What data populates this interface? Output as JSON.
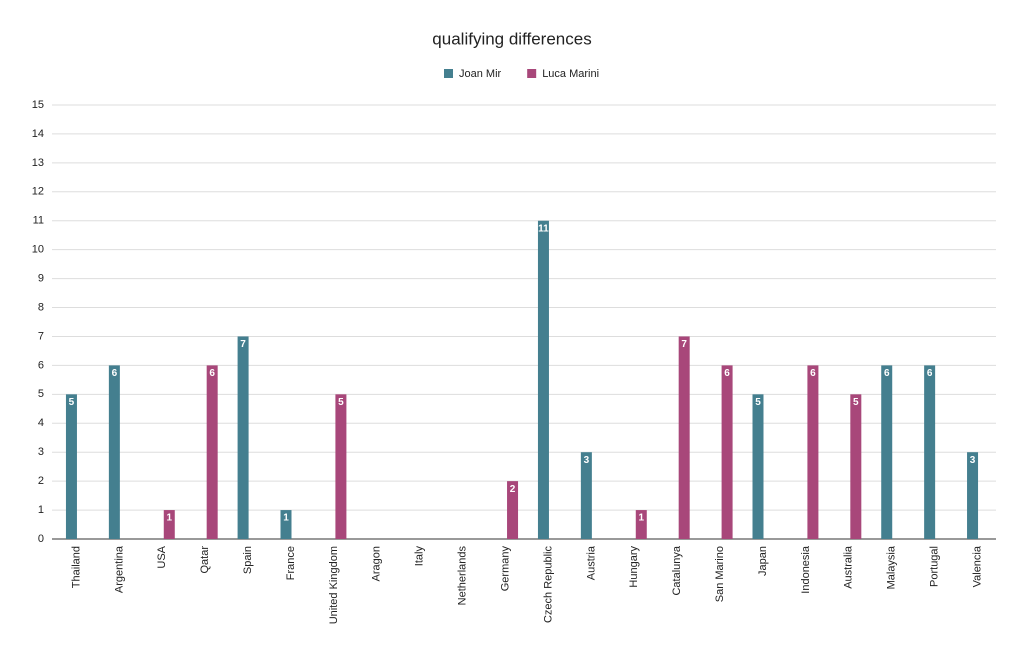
{
  "chart_data": {
    "type": "bar",
    "title": "qualifying differences",
    "categories": [
      "Thailand",
      "Argentina",
      "USA",
      "Qatar",
      "Spain",
      "France",
      "United Kingdom",
      "Aragon",
      "Italy",
      "Netherlands",
      "Germany",
      "Czech Republic",
      "Austria",
      "Hungary",
      "Catalunya",
      "San Marino",
      "Japan",
      "Indonesia",
      "Australia",
      "Malaysia",
      "Portugal",
      "Valencia"
    ],
    "series": [
      {
        "name": "Joan Mir",
        "color": "#447f8f",
        "values": [
          5,
          6,
          null,
          null,
          7,
          1,
          null,
          null,
          null,
          null,
          null,
          11,
          3,
          null,
          null,
          null,
          5,
          null,
          null,
          6,
          6,
          3
        ]
      },
      {
        "name": "Luca Marini",
        "color": "#a8477a",
        "values": [
          null,
          null,
          1,
          6,
          null,
          null,
          5,
          null,
          null,
          null,
          2,
          null,
          null,
          1,
          7,
          6,
          null,
          6,
          5,
          null,
          null,
          null
        ]
      }
    ],
    "ylim": [
      0,
      15
    ],
    "yticks": [
      0,
      1,
      2,
      3,
      4,
      5,
      6,
      7,
      8,
      9,
      10,
      11,
      12,
      13,
      14,
      15
    ],
    "grid": true,
    "legend": "top"
  }
}
